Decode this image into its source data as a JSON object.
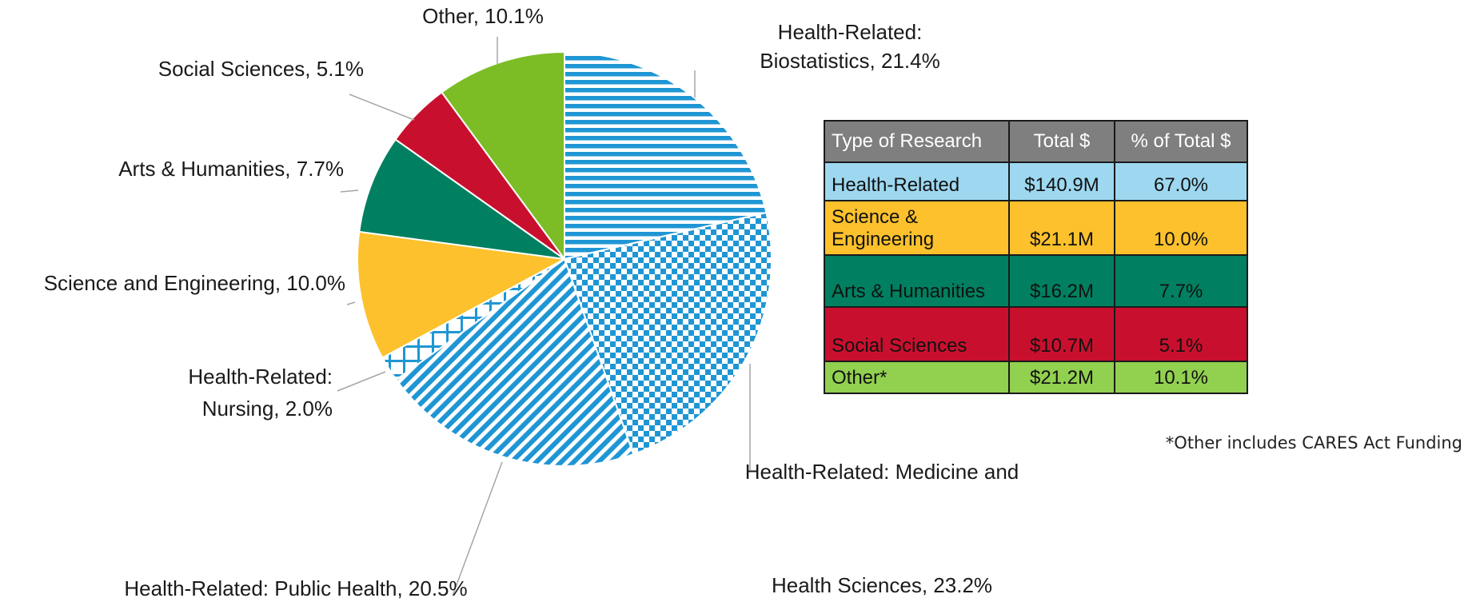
{
  "chart_data": {
    "type": "pie",
    "values": [
      21.4,
      23.2,
      20.5,
      2.0,
      10.0,
      7.7,
      5.1,
      10.1
    ],
    "value_labels": [
      [
        "Health-Related:",
        "Biostatistics, 21.4%"
      ],
      [
        "Health-Related: Medicine and",
        "Health Sciences, 23.2%"
      ],
      [
        "Health-Related: Public Health, 20.5%"
      ],
      [
        "Health-Related:",
        "Nursing, 2.0%"
      ],
      [
        "Science and Engineering, 10.0%"
      ],
      [
        "Arts & Humanities, 7.7%"
      ],
      [
        "Social Sciences, 5.1%"
      ],
      [
        "Other, 10.1%"
      ]
    ],
    "colors": [
      "#1f96d4",
      "#1f96d4",
      "#1f96d4",
      "#1f96d4",
      "#fcc12c",
      "#008060",
      "#c8102e",
      "#7cbd26"
    ],
    "patterns": [
      "horizontal",
      "checker",
      "diagonal",
      "grid",
      null,
      null,
      null,
      null
    ]
  },
  "table": {
    "header": [
      "Type of Research",
      "Total $",
      "% of Total $"
    ],
    "header_color": "#7f7f7f",
    "rows": [
      [
        "Health-Related",
        "$140.9M",
        "67.0%"
      ],
      [
        "Science & Engineering",
        "$21.1M",
        "10.0%"
      ],
      [
        "Arts & Humanities",
        "$16.2M",
        "7.7%"
      ],
      [
        "Social Sciences",
        "$10.7M",
        "5.1%"
      ],
      [
        "Other*",
        "$21.2M",
        "10.1%"
      ]
    ],
    "row_colors": [
      "#9dd8f0",
      "#fcc12c",
      "#008060",
      "#c8102e",
      "#92d050"
    ]
  },
  "footnote": "*Other includes CARES Act Funding"
}
